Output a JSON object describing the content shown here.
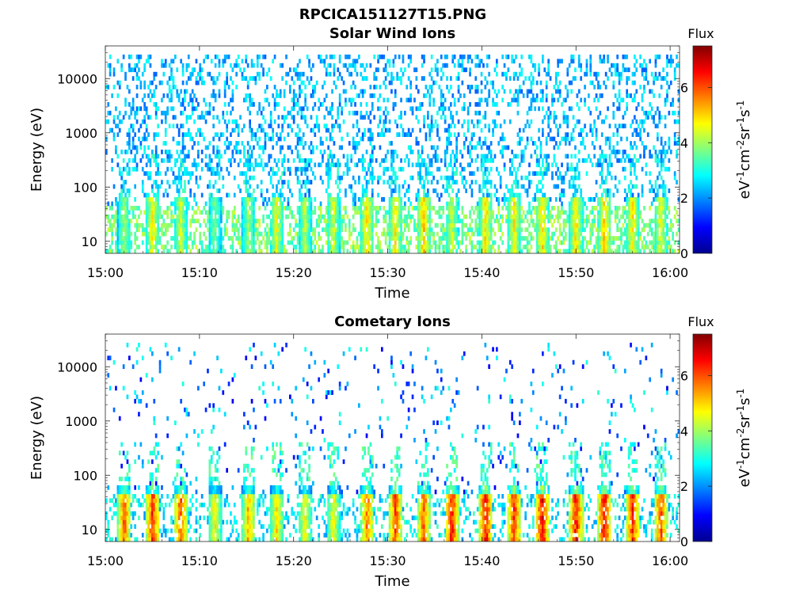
{
  "figure_title": "RPCICA151127T15.PNG",
  "chart_data": [
    {
      "type": "heatmap",
      "title": "Solar Wind Ions",
      "xlabel": "Time",
      "ylabel": "Energy (eV)",
      "x_ticks": [
        "15:00",
        "15:10",
        "15:20",
        "15:30",
        "15:40",
        "15:50",
        "16:00"
      ],
      "x_range": [
        "15:00",
        "16:01"
      ],
      "y_scale": "log",
      "y_ticks": [
        "10",
        "100",
        "1000",
        "10000"
      ],
      "y_range": [
        6,
        40000
      ],
      "colorbar": {
        "title": "Flux",
        "label": "eV-1cm-2sr-1s-1",
        "ticks": [
          "0",
          "2",
          "4",
          "6"
        ],
        "range": [
          0,
          7.5
        ],
        "colormap": "jet"
      },
      "data_description": "Sparse low-flux (1-3) speckle across 200-20000 eV throughout the hour; recurring bursts of flux 3.5-5.5 below ~60 eV roughly every 3-4 minutes.",
      "background_level": [
        1.6,
        3.0
      ],
      "low_energy_bursts": [
        {
          "t": 15.04,
          "peak": 4.2
        },
        {
          "t": 15.09,
          "peak": 5.0
        },
        {
          "t": 15.14,
          "peak": 4.6
        },
        {
          "t": 15.2,
          "peak": 4.0
        },
        {
          "t": 15.26,
          "peak": 4.3
        },
        {
          "t": 15.31,
          "peak": 4.8
        },
        {
          "t": 15.36,
          "peak": 4.4
        },
        {
          "t": 15.41,
          "peak": 4.6
        },
        {
          "t": 15.47,
          "peak": 5.1
        },
        {
          "t": 15.52,
          "peak": 5.0
        },
        {
          "t": 15.57,
          "peak": 5.4
        },
        {
          "t": 15.62,
          "peak": 4.6
        },
        {
          "t": 15.68,
          "peak": 5.2
        },
        {
          "t": 15.73,
          "peak": 5.0
        },
        {
          "t": 15.78,
          "peak": 5.2
        },
        {
          "t": 15.84,
          "peak": 5.1
        },
        {
          "t": 15.89,
          "peak": 5.4
        },
        {
          "t": 15.94,
          "peak": 5.0
        },
        {
          "t": 15.99,
          "peak": 4.8
        }
      ]
    },
    {
      "type": "heatmap",
      "title": "Cometary Ions",
      "xlabel": "Time",
      "ylabel": "Energy (eV)",
      "x_ticks": [
        "15:00",
        "15:10",
        "15:20",
        "15:30",
        "15:40",
        "15:50",
        "16:00"
      ],
      "x_range": [
        "15:00",
        "16:01"
      ],
      "y_scale": "log",
      "y_ticks": [
        "10",
        "100",
        "1000",
        "10000"
      ],
      "y_range": [
        6,
        40000
      ],
      "colorbar": {
        "title": "Flux",
        "label": "eV-1cm-2sr-1s-1",
        "ticks": [
          "0",
          "2",
          "4",
          "6"
        ],
        "range": [
          0,
          7.5
        ],
        "colormap": "jet"
      },
      "data_description": "Sparse low-flux points at high energy; intense bursts (flux 5-7) below ~40 eV roughly every 3-4 minutes, strongest after 15:30.",
      "low_energy_bursts": [
        {
          "t": 15.04,
          "peak": 6.2
        },
        {
          "t": 15.09,
          "peak": 6.6
        },
        {
          "t": 15.14,
          "peak": 6.3
        },
        {
          "t": 15.2,
          "peak": 5.0
        },
        {
          "t": 15.26,
          "peak": 5.6
        },
        {
          "t": 15.31,
          "peak": 5.2
        },
        {
          "t": 15.36,
          "peak": 5.0
        },
        {
          "t": 15.41,
          "peak": 5.0
        },
        {
          "t": 15.47,
          "peak": 6.0
        },
        {
          "t": 15.52,
          "peak": 6.4
        },
        {
          "t": 15.57,
          "peak": 6.2
        },
        {
          "t": 15.62,
          "peak": 6.8
        },
        {
          "t": 15.68,
          "peak": 7.0
        },
        {
          "t": 15.73,
          "peak": 6.6
        },
        {
          "t": 15.78,
          "peak": 7.0
        },
        {
          "t": 15.84,
          "peak": 6.8
        },
        {
          "t": 15.89,
          "peak": 7.0
        },
        {
          "t": 15.94,
          "peak": 6.6
        },
        {
          "t": 15.99,
          "peak": 6.4
        }
      ]
    }
  ]
}
